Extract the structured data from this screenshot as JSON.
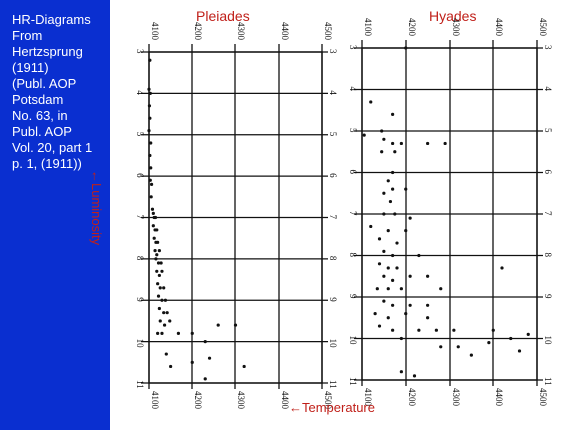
{
  "sidebar": {
    "caption": "HR-Diagrams\nFrom\nHertzsprung\n(1911)\n(Publ. AOP\nPotsdam\nNo. 63, in\nPubl. AOP\nVol. 20, part 1\np. 1, (1911))",
    "bg_color": "#0a2fd0"
  },
  "axis_labels": {
    "x": "Temperature",
    "y": "Luminosity",
    "arrow": "←",
    "color": "#c0201a"
  },
  "chart_data": [
    {
      "type": "scatter",
      "title": "Pleiades",
      "x_ticks": [
        "4100",
        "4200",
        "4300",
        "4400",
        "4500"
      ],
      "y_ticks": [
        "3",
        "4",
        "5",
        "6",
        "7",
        "8",
        "9",
        "10",
        "11"
      ],
      "xlim": [
        4100,
        4500
      ],
      "ylim": [
        3,
        11
      ],
      "grid": true,
      "points": [
        [
          4102,
          3.2
        ],
        [
          4100,
          3.9
        ],
        [
          4103,
          4.0
        ],
        [
          4101,
          4.3
        ],
        [
          4102,
          4.6
        ],
        [
          4100,
          4.9
        ],
        [
          4104,
          5.2
        ],
        [
          4102,
          5.5
        ],
        [
          4104,
          5.8
        ],
        [
          4103,
          6.1
        ],
        [
          4106,
          6.2
        ],
        [
          4105,
          6.5
        ],
        [
          4108,
          6.8
        ],
        [
          4110,
          6.9
        ],
        [
          4112,
          7.0
        ],
        [
          4115,
          7.0
        ],
        [
          4110,
          7.2
        ],
        [
          4114,
          7.3
        ],
        [
          4118,
          7.3
        ],
        [
          4112,
          7.5
        ],
        [
          4116,
          7.6
        ],
        [
          4120,
          7.6
        ],
        [
          4114,
          7.8
        ],
        [
          4118,
          7.9
        ],
        [
          4124,
          7.8
        ],
        [
          4116,
          8.0
        ],
        [
          4122,
          8.1
        ],
        [
          4128,
          8.1
        ],
        [
          4118,
          8.3
        ],
        [
          4124,
          8.4
        ],
        [
          4130,
          8.3
        ],
        [
          4120,
          8.6
        ],
        [
          4126,
          8.7
        ],
        [
          4134,
          8.7
        ],
        [
          4122,
          8.9
        ],
        [
          4130,
          9.0
        ],
        [
          4138,
          9.0
        ],
        [
          4124,
          9.2
        ],
        [
          4134,
          9.3
        ],
        [
          4142,
          9.3
        ],
        [
          4126,
          9.5
        ],
        [
          4136,
          9.6
        ],
        [
          4148,
          9.5
        ],
        [
          4120,
          9.8
        ],
        [
          4130,
          9.8
        ],
        [
          4168,
          9.8
        ],
        [
          4200,
          9.8
        ],
        [
          4230,
          10.0
        ],
        [
          4260,
          9.6
        ],
        [
          4300,
          9.6
        ],
        [
          4140,
          10.3
        ],
        [
          4200,
          10.5
        ],
        [
          4240,
          10.4
        ],
        [
          4320,
          10.6
        ],
        [
          4150,
          10.6
        ],
        [
          4230,
          10.9
        ]
      ]
    },
    {
      "type": "scatter",
      "title": "Hyades",
      "x_ticks": [
        "4100",
        "4200",
        "4300",
        "4400",
        "4500"
      ],
      "y_ticks": [
        "3",
        "4",
        "5",
        "6",
        "7",
        "8",
        "9",
        "10",
        "11"
      ],
      "xlim": [
        4100,
        4500
      ],
      "ylim": [
        3,
        11
      ],
      "grid": true,
      "points": [
        [
          4200,
          3.0
        ],
        [
          4120,
          4.3
        ],
        [
          4170,
          4.6
        ],
        [
          4145,
          5.0
        ],
        [
          4105,
          5.1
        ],
        [
          4150,
          5.2
        ],
        [
          4170,
          5.3
        ],
        [
          4190,
          5.3
        ],
        [
          4250,
          5.3
        ],
        [
          4290,
          5.3
        ],
        [
          4145,
          5.5
        ],
        [
          4175,
          5.5
        ],
        [
          4170,
          6.0
        ],
        [
          4160,
          6.2
        ],
        [
          4170,
          6.4
        ],
        [
          4150,
          6.5
        ],
        [
          4165,
          6.7
        ],
        [
          4200,
          6.4
        ],
        [
          4150,
          7.0
        ],
        [
          4175,
          7.0
        ],
        [
          4210,
          7.1
        ],
        [
          4120,
          7.3
        ],
        [
          4160,
          7.4
        ],
        [
          4200,
          7.4
        ],
        [
          4140,
          7.6
        ],
        [
          4180,
          7.7
        ],
        [
          4150,
          7.9
        ],
        [
          4170,
          8.0
        ],
        [
          4230,
          8.0
        ],
        [
          4140,
          8.2
        ],
        [
          4160,
          8.3
        ],
        [
          4180,
          8.3
        ],
        [
          4150,
          8.5
        ],
        [
          4170,
          8.6
        ],
        [
          4210,
          8.5
        ],
        [
          4250,
          8.5
        ],
        [
          4420,
          8.3
        ],
        [
          4135,
          8.8
        ],
        [
          4160,
          8.8
        ],
        [
          4190,
          8.8
        ],
        [
          4280,
          8.8
        ],
        [
          4150,
          9.1
        ],
        [
          4170,
          9.2
        ],
        [
          4210,
          9.2
        ],
        [
          4250,
          9.2
        ],
        [
          4130,
          9.4
        ],
        [
          4160,
          9.5
        ],
        [
          4200,
          9.4
        ],
        [
          4250,
          9.5
        ],
        [
          4140,
          9.7
        ],
        [
          4170,
          9.8
        ],
        [
          4230,
          9.8
        ],
        [
          4270,
          9.8
        ],
        [
          4310,
          9.8
        ],
        [
          4400,
          9.8
        ],
        [
          4190,
          10.0
        ],
        [
          4280,
          10.2
        ],
        [
          4320,
          10.2
        ],
        [
          4390,
          10.1
        ],
        [
          4440,
          10.0
        ],
        [
          4460,
          10.3
        ],
        [
          4350,
          10.4
        ],
        [
          4190,
          10.8
        ],
        [
          4220,
          10.9
        ],
        [
          4480,
          9.9
        ]
      ]
    }
  ]
}
